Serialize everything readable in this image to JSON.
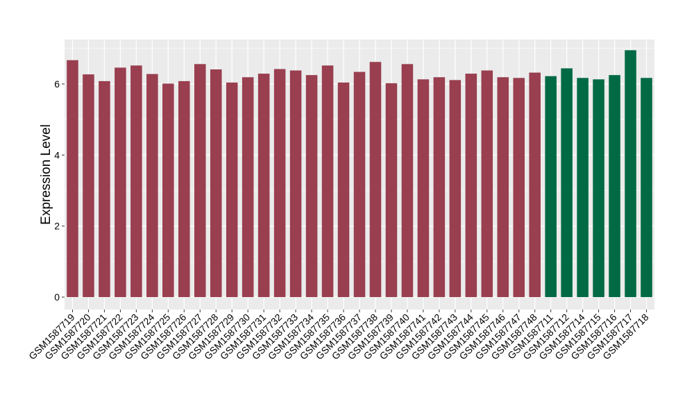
{
  "chart_data": {
    "type": "bar",
    "ylabel": "Expression Level",
    "xlabel": "",
    "ylim": [
      -0.35,
      7.25
    ],
    "yticks": [
      0,
      2,
      4,
      6
    ],
    "grid": true,
    "colors": {
      "group_a": "#993f4f",
      "group_b": "#006a45",
      "panel": "#ebebeb",
      "grid": "#ffffff"
    },
    "categories": [
      "GSM1587719",
      "GSM1587720",
      "GSM1587721",
      "GSM1587722",
      "GSM1587723",
      "GSM1587724",
      "GSM1587725",
      "GSM1587726",
      "GSM1587727",
      "GSM1587728",
      "GSM1587729",
      "GSM1587730",
      "GSM1587731",
      "GSM1587732",
      "GSM1587733",
      "GSM1587734",
      "GSM1587735",
      "GSM1587736",
      "GSM1587737",
      "GSM1587738",
      "GSM1587739",
      "GSM1587740",
      "GSM1587741",
      "GSM1587742",
      "GSM1587743",
      "GSM1587744",
      "GSM1587745",
      "GSM1587746",
      "GSM1587747",
      "GSM1587748",
      "GSM1587711",
      "GSM1587712",
      "GSM1587714",
      "GSM1587715",
      "GSM1587716",
      "GSM1587717",
      "GSM1587718"
    ],
    "values": [
      6.67,
      6.27,
      6.08,
      6.46,
      6.52,
      6.28,
      6.01,
      6.08,
      6.56,
      6.41,
      6.04,
      6.19,
      6.29,
      6.42,
      6.38,
      6.25,
      6.52,
      6.04,
      6.34,
      6.62,
      6.02,
      6.56,
      6.13,
      6.19,
      6.11,
      6.29,
      6.38,
      6.19,
      6.17,
      6.32,
      6.22,
      6.44,
      6.17,
      6.13,
      6.25,
      6.95,
      6.17
    ],
    "groups": [
      "a",
      "a",
      "a",
      "a",
      "a",
      "a",
      "a",
      "a",
      "a",
      "a",
      "a",
      "a",
      "a",
      "a",
      "a",
      "a",
      "a",
      "a",
      "a",
      "a",
      "a",
      "a",
      "a",
      "a",
      "a",
      "a",
      "a",
      "a",
      "a",
      "a",
      "b",
      "b",
      "b",
      "b",
      "b",
      "b",
      "b"
    ]
  }
}
